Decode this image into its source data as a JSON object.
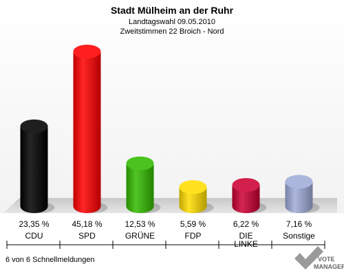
{
  "chart_data": {
    "type": "bar",
    "title": "Stadt Mülheim an der Ruhr",
    "subtitle": "Landtagswahl 09.05.2010",
    "subtitle2": "Zweitstimmen 22 Broich - Nord",
    "categories": [
      "CDU",
      "SPD",
      "GRÜNE",
      "FDP",
      "DIE LINKE",
      "Sonstige"
    ],
    "category_lines": [
      [
        "CDU"
      ],
      [
        "SPD"
      ],
      [
        "GRÜNE"
      ],
      [
        "FDP"
      ],
      [
        "DIE",
        "LINKE"
      ],
      [
        "Sonstige"
      ]
    ],
    "values": [
      23.35,
      45.18,
      12.53,
      5.59,
      6.22,
      7.16
    ],
    "value_labels": [
      "23,35 %",
      "45,18 %",
      "12,53 %",
      "5,59 %",
      "6,22 %",
      "7,16 %"
    ],
    "colors": [
      "#000000",
      "#ff0000",
      "#33bb00",
      "#ffdd00",
      "#cc0033",
      "#a0acd8"
    ],
    "ylim": [
      0,
      45.18
    ],
    "grid": false
  },
  "footer": {
    "status": "6 von 6 Schnellmeldungen",
    "brand_line1": "VOTE",
    "brand_line2": "MANAGER"
  }
}
